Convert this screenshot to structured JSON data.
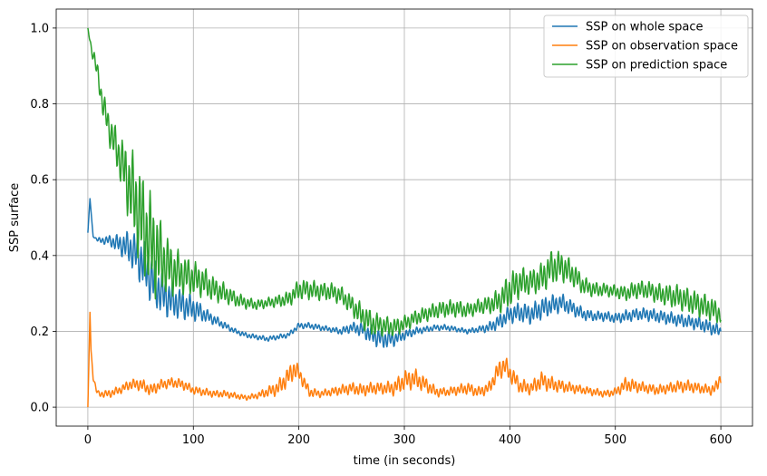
{
  "chart_data": {
    "type": "line",
    "xlabel": "time (in seconds)",
    "ylabel": "SSP surface",
    "xlim": [
      -30,
      630
    ],
    "ylim": [
      -0.05,
      1.05
    ],
    "xticks": [
      0,
      100,
      200,
      300,
      400,
      500,
      600
    ],
    "yticks": [
      0.0,
      0.2,
      0.4,
      0.6,
      0.8,
      1.0
    ],
    "ytick_labels": [
      "0.0",
      "0.2",
      "0.4",
      "0.6",
      "0.8",
      "1.0"
    ],
    "grid": true,
    "legend_position": "top-right",
    "series": [
      {
        "name": "SSP on whole space",
        "color": "#1f77b4",
        "x": [
          0,
          2,
          5,
          10,
          20,
          30,
          40,
          50,
          60,
          70,
          80,
          90,
          100,
          110,
          120,
          130,
          140,
          150,
          160,
          170,
          180,
          190,
          200,
          210,
          220,
          230,
          240,
          250,
          260,
          270,
          280,
          290,
          300,
          310,
          320,
          330,
          340,
          350,
          360,
          370,
          380,
          390,
          400,
          410,
          420,
          430,
          440,
          450,
          460,
          470,
          480,
          490,
          500,
          510,
          520,
          530,
          540,
          550,
          560,
          570,
          580,
          590,
          600
        ],
        "y": [
          0.46,
          0.55,
          0.45,
          0.44,
          0.44,
          0.43,
          0.42,
          0.39,
          0.34,
          0.3,
          0.28,
          0.27,
          0.26,
          0.245,
          0.23,
          0.215,
          0.2,
          0.19,
          0.185,
          0.18,
          0.185,
          0.19,
          0.215,
          0.215,
          0.21,
          0.205,
          0.2,
          0.21,
          0.205,
          0.19,
          0.18,
          0.18,
          0.19,
          0.2,
          0.205,
          0.21,
          0.21,
          0.205,
          0.2,
          0.205,
          0.21,
          0.225,
          0.245,
          0.25,
          0.245,
          0.26,
          0.27,
          0.275,
          0.26,
          0.245,
          0.24,
          0.24,
          0.235,
          0.24,
          0.245,
          0.245,
          0.24,
          0.235,
          0.23,
          0.225,
          0.22,
          0.21,
          0.2
        ],
        "amp": [
          0,
          0,
          0,
          0.005,
          0.01,
          0.02,
          0.035,
          0.05,
          0.05,
          0.045,
          0.035,
          0.03,
          0.025,
          0.015,
          0.01,
          0.007,
          0.005,
          0.005,
          0.005,
          0.005,
          0.005,
          0.005,
          0.006,
          0.006,
          0.006,
          0.005,
          0.007,
          0.01,
          0.015,
          0.02,
          0.02,
          0.015,
          0.01,
          0.008,
          0.006,
          0.006,
          0.006,
          0.005,
          0.005,
          0.006,
          0.01,
          0.015,
          0.018,
          0.02,
          0.02,
          0.022,
          0.02,
          0.018,
          0.015,
          0.012,
          0.01,
          0.01,
          0.01,
          0.012,
          0.012,
          0.013,
          0.013,
          0.013,
          0.013,
          0.013,
          0.014,
          0.014,
          0.012
        ]
      },
      {
        "name": "SSP on observation space",
        "color": "#ff7f0e",
        "x": [
          0,
          1,
          2,
          3,
          5,
          8,
          10,
          15,
          20,
          30,
          40,
          50,
          60,
          70,
          80,
          90,
          100,
          110,
          120,
          130,
          140,
          150,
          160,
          170,
          180,
          190,
          195,
          200,
          210,
          220,
          230,
          240,
          250,
          260,
          270,
          280,
          290,
          300,
          310,
          320,
          330,
          340,
          350,
          360,
          370,
          380,
          390,
          395,
          400,
          410,
          420,
          430,
          440,
          450,
          460,
          470,
          480,
          490,
          500,
          510,
          520,
          530,
          540,
          550,
          560,
          570,
          580,
          590,
          595,
          600
        ],
        "y": [
          0.0,
          0.12,
          0.25,
          0.15,
          0.08,
          0.045,
          0.035,
          0.035,
          0.035,
          0.045,
          0.06,
          0.06,
          0.045,
          0.06,
          0.065,
          0.06,
          0.045,
          0.04,
          0.035,
          0.035,
          0.03,
          0.025,
          0.03,
          0.04,
          0.05,
          0.08,
          0.1,
          0.09,
          0.04,
          0.035,
          0.04,
          0.045,
          0.05,
          0.045,
          0.05,
          0.05,
          0.05,
          0.07,
          0.075,
          0.06,
          0.04,
          0.04,
          0.045,
          0.05,
          0.04,
          0.05,
          0.1,
          0.11,
          0.09,
          0.055,
          0.05,
          0.07,
          0.06,
          0.055,
          0.05,
          0.045,
          0.04,
          0.035,
          0.04,
          0.06,
          0.055,
          0.05,
          0.045,
          0.05,
          0.055,
          0.055,
          0.05,
          0.045,
          0.05,
          0.08
        ],
        "amp": [
          0,
          0,
          0,
          0,
          0.005,
          0.006,
          0.006,
          0.007,
          0.008,
          0.008,
          0.01,
          0.012,
          0.012,
          0.01,
          0.01,
          0.01,
          0.008,
          0.008,
          0.007,
          0.007,
          0.006,
          0.005,
          0.006,
          0.01,
          0.015,
          0.02,
          0.02,
          0.015,
          0.01,
          0.007,
          0.008,
          0.01,
          0.012,
          0.012,
          0.012,
          0.012,
          0.015,
          0.02,
          0.02,
          0.015,
          0.01,
          0.008,
          0.01,
          0.012,
          0.01,
          0.012,
          0.02,
          0.02,
          0.018,
          0.015,
          0.013,
          0.018,
          0.015,
          0.012,
          0.01,
          0.008,
          0.008,
          0.007,
          0.008,
          0.015,
          0.012,
          0.01,
          0.01,
          0.01,
          0.012,
          0.012,
          0.01,
          0.01,
          0.012,
          0.015
        ]
      },
      {
        "name": "SSP on prediction space",
        "color": "#2ca02c",
        "x": [
          0,
          3,
          6,
          10,
          14,
          18,
          22,
          26,
          30,
          35,
          40,
          45,
          50,
          55,
          60,
          65,
          70,
          80,
          90,
          100,
          110,
          120,
          130,
          140,
          150,
          160,
          170,
          180,
          190,
          200,
          210,
          220,
          230,
          240,
          250,
          260,
          270,
          280,
          290,
          300,
          310,
          320,
          330,
          340,
          350,
          360,
          370,
          380,
          390,
          400,
          410,
          420,
          430,
          440,
          450,
          460,
          470,
          480,
          490,
          500,
          510,
          520,
          530,
          540,
          550,
          560,
          570,
          580,
          590,
          600
        ],
        "y": [
          1.0,
          0.95,
          0.92,
          0.87,
          0.8,
          0.76,
          0.72,
          0.69,
          0.66,
          0.62,
          0.58,
          0.54,
          0.5,
          0.46,
          0.43,
          0.41,
          0.39,
          0.36,
          0.35,
          0.34,
          0.33,
          0.31,
          0.3,
          0.285,
          0.275,
          0.27,
          0.275,
          0.28,
          0.285,
          0.31,
          0.31,
          0.305,
          0.305,
          0.295,
          0.27,
          0.24,
          0.22,
          0.215,
          0.21,
          0.22,
          0.235,
          0.245,
          0.255,
          0.26,
          0.26,
          0.255,
          0.265,
          0.27,
          0.28,
          0.31,
          0.33,
          0.33,
          0.34,
          0.37,
          0.37,
          0.35,
          0.32,
          0.31,
          0.31,
          0.305,
          0.3,
          0.31,
          0.31,
          0.3,
          0.295,
          0.29,
          0.28,
          0.27,
          0.26,
          0.245
        ],
        "amp": [
          0,
          0.01,
          0.015,
          0.02,
          0.025,
          0.03,
          0.035,
          0.04,
          0.045,
          0.06,
          0.08,
          0.09,
          0.1,
          0.1,
          0.1,
          0.09,
          0.07,
          0.05,
          0.04,
          0.035,
          0.03,
          0.025,
          0.02,
          0.015,
          0.012,
          0.01,
          0.01,
          0.012,
          0.015,
          0.02,
          0.02,
          0.018,
          0.018,
          0.018,
          0.02,
          0.025,
          0.025,
          0.02,
          0.018,
          0.016,
          0.015,
          0.015,
          0.016,
          0.017,
          0.017,
          0.015,
          0.015,
          0.018,
          0.025,
          0.035,
          0.03,
          0.025,
          0.03,
          0.035,
          0.03,
          0.025,
          0.018,
          0.015,
          0.013,
          0.013,
          0.015,
          0.018,
          0.018,
          0.02,
          0.022,
          0.025,
          0.025,
          0.025,
          0.025,
          0.02
        ]
      }
    ]
  }
}
